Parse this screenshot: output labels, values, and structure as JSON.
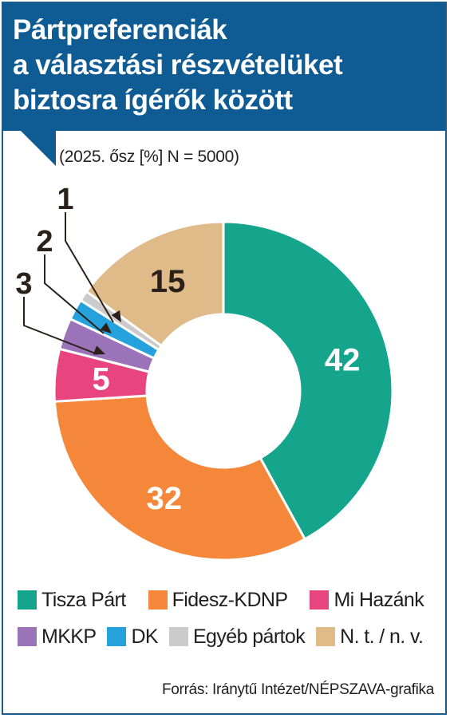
{
  "header": {
    "title_lines": [
      "Pártpreferenciák",
      "a választási részvételüket",
      "biztosra ígérők között"
    ],
    "subtitle": "(2025. ősz [%] N = 5000)"
  },
  "chart_data": {
    "type": "pie",
    "donut": true,
    "title": "Pártpreferenciák a választási részvételüket biztosra ígérők között",
    "subtitle": "(2025. ősz [%] N = 5000)",
    "unit": "%",
    "slices": [
      {
        "name": "Tisza Párt",
        "value": 42,
        "label": "42",
        "color": "#14a58c",
        "label_color": "#ffffff"
      },
      {
        "name": "Fidesz-KDNP",
        "value": 32,
        "label": "32",
        "color": "#f5873a",
        "label_color": "#ffffff"
      },
      {
        "name": "Mi Hazánk",
        "value": 5,
        "label": "5",
        "color": "#e8447d",
        "label_color": "#ffffff"
      },
      {
        "name": "MKKP",
        "value": 3,
        "label": "3",
        "color": "#9b73b8",
        "label_color": "#2a2118",
        "callout": true
      },
      {
        "name": "DK",
        "value": 2,
        "label": "2",
        "color": "#25a1dc",
        "label_color": "#2a2118",
        "callout": true
      },
      {
        "name": "Egyéb pártok",
        "value": 1,
        "label": "1",
        "color": "#cbcbcb",
        "label_color": "#2a2118",
        "callout": true
      },
      {
        "name": "N. t. / n. v.",
        "value": 15,
        "label": "15",
        "color": "#dfbb8a",
        "label_color": "#2a2118"
      }
    ],
    "legend": {
      "position": "bottom"
    }
  },
  "source": "Forrás: Iránytű Intézet/NÉPSZAVA-grafika",
  "colors": {
    "header_bg": "#0f5b94",
    "border": "#1a5b8c",
    "callout_line": "#2a2118"
  }
}
